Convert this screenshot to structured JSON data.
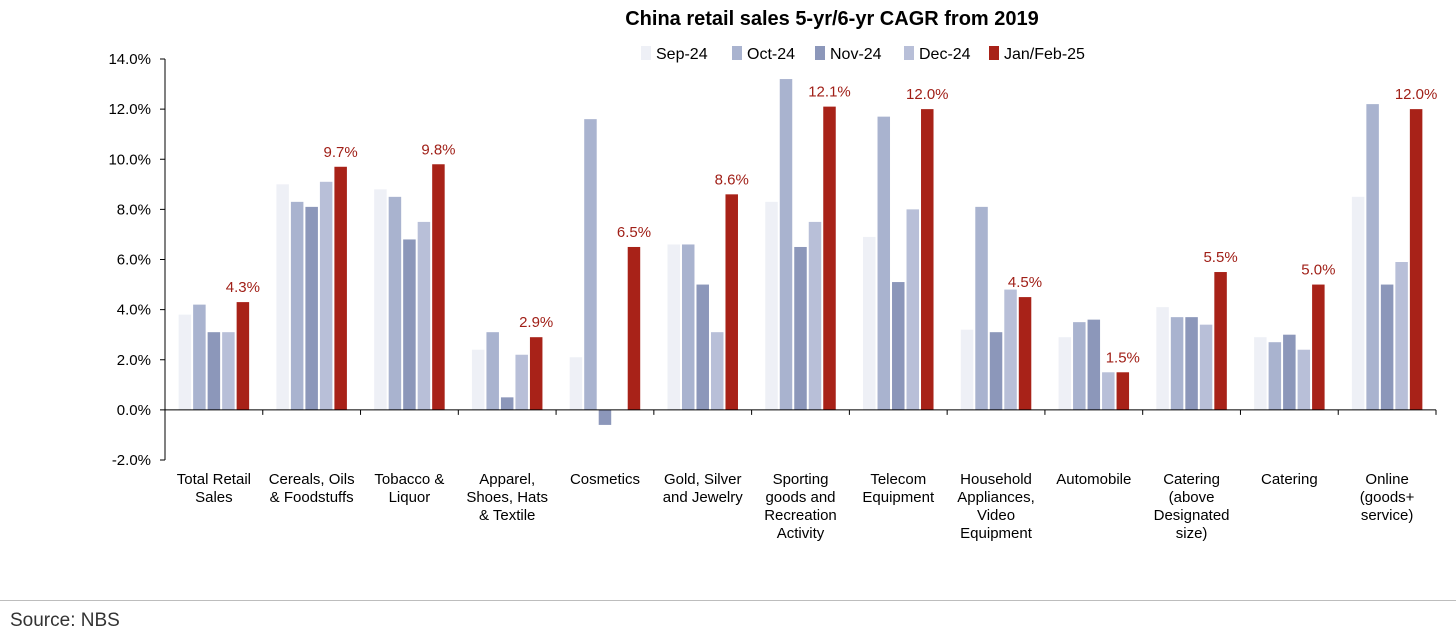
{
  "chart_data": {
    "type": "bar",
    "title": "China retail sales 5-yr/6-yr CAGR from 2019",
    "ylim": [
      -2,
      14
    ],
    "yticks": [
      -2,
      0,
      2,
      4,
      6,
      8,
      10,
      12,
      14
    ],
    "ytick_labels": [
      "-2.0%",
      "0.0%",
      "2.0%",
      "4.0%",
      "6.0%",
      "8.0%",
      "10.0%",
      "12.0%",
      "14.0%"
    ],
    "categories": [
      [
        "Total Retail",
        "Sales"
      ],
      [
        "Cereals, Oils",
        "& Foodstuffs"
      ],
      [
        "Tobacco &",
        "Liquor"
      ],
      [
        "Apparel,",
        "Shoes, Hats",
        "& Textile"
      ],
      [
        "Cosmetics"
      ],
      [
        "Gold, Silver",
        "and Jewelry"
      ],
      [
        "Sporting",
        "goods and",
        "Recreation",
        "Activity"
      ],
      [
        "Telecom",
        "Equipment"
      ],
      [
        "Household",
        "Appliances,",
        "Video",
        "Equipment"
      ],
      [
        "Automobile"
      ],
      [
        "Catering",
        "(above",
        "Designated",
        "size)"
      ],
      [
        "Catering"
      ],
      [
        "Online",
        "(goods+",
        "service)"
      ]
    ],
    "series": [
      {
        "name": "Sep-24",
        "color": "#eef0f6",
        "values": [
          3.8,
          9.0,
          8.8,
          2.4,
          2.1,
          6.6,
          8.3,
          6.9,
          3.2,
          2.9,
          4.1,
          2.9,
          8.5
        ]
      },
      {
        "name": "Oct-24",
        "color": "#a9b3cf",
        "values": [
          4.2,
          8.3,
          8.5,
          3.1,
          11.6,
          6.6,
          13.2,
          11.7,
          8.1,
          3.5,
          3.7,
          2.7,
          12.2
        ]
      },
      {
        "name": "Nov-24",
        "color": "#8c97ba",
        "values": [
          3.1,
          8.1,
          6.8,
          0.5,
          -0.6,
          5.0,
          6.5,
          5.1,
          3.1,
          3.6,
          3.7,
          3.0,
          5.0
        ]
      },
      {
        "name": "Dec-24",
        "color": "#b8bfd8",
        "values": [
          3.1,
          9.1,
          7.5,
          2.2,
          0.0,
          3.1,
          7.5,
          8.0,
          4.8,
          1.5,
          3.4,
          2.4,
          5.9
        ]
      },
      {
        "name": "Jan/Feb-25",
        "color": "#a82218",
        "values": [
          4.3,
          9.7,
          9.8,
          2.9,
          6.5,
          8.6,
          12.1,
          12.0,
          4.5,
          1.5,
          5.5,
          5.0,
          12.0
        ]
      }
    ],
    "data_labels": [
      "4.3%",
      "9.7%",
      "9.8%",
      "2.9%",
      "6.5%",
      "8.6%",
      "12.1%",
      "12.0%",
      "4.5%",
      "1.5%",
      "5.5%",
      "5.0%",
      "12.0%"
    ],
    "label_color": "#a01f17",
    "legend_position": "top-center"
  },
  "source": "Source: NBS"
}
